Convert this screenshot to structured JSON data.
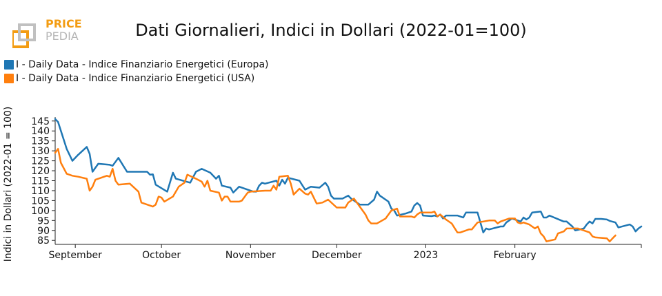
{
  "chart_data": {
    "type": "line",
    "title": "Dati Giornalieri, Indici in Dollari (2022-01=100)",
    "xlabel": "",
    "ylabel": "Indici in Dollari (2022-01 = 100)",
    "x_tick_labels": [
      "September",
      "October",
      "November",
      "December",
      "2023",
      "February"
    ],
    "y_ticks": [
      85,
      90,
      95,
      100,
      105,
      110,
      115,
      120,
      125,
      130,
      135,
      140,
      145
    ],
    "ylim": [
      83,
      147
    ],
    "grid": false,
    "legend_position": "top-left",
    "series": [
      {
        "name": "I - Daily Data - Indice Finanziario Energetici (Europa)",
        "color": "#1f77b4",
        "points": [
          [
            "2022-08-25",
            146
          ],
          [
            "2022-08-26",
            144.5
          ],
          [
            "2022-08-29",
            131
          ],
          [
            "2022-08-31",
            125
          ],
          [
            "2022-09-02",
            128
          ],
          [
            "2022-09-05",
            132
          ],
          [
            "2022-09-06",
            128.5
          ],
          [
            "2022-09-07",
            119.5
          ],
          [
            "2022-09-09",
            123.5
          ],
          [
            "2022-09-13",
            123
          ],
          [
            "2022-09-14",
            122.5
          ],
          [
            "2022-09-16",
            126.5
          ],
          [
            "2022-09-19",
            119.5
          ],
          [
            "2022-09-22",
            119.5
          ],
          [
            "2022-09-26",
            119.5
          ],
          [
            "2022-09-27",
            118
          ],
          [
            "2022-09-28",
            118.2
          ],
          [
            "2022-09-29",
            113
          ],
          [
            "2022-10-03",
            109.5
          ],
          [
            "2022-10-05",
            119
          ],
          [
            "2022-10-06",
            116
          ],
          [
            "2022-10-11",
            114
          ],
          [
            "2022-10-13",
            119.5
          ],
          [
            "2022-10-15",
            121
          ],
          [
            "2022-10-18",
            119
          ],
          [
            "2022-10-20",
            116
          ],
          [
            "2022-10-21",
            117.5
          ],
          [
            "2022-10-22",
            112.5
          ],
          [
            "2022-10-25",
            111.5
          ],
          [
            "2022-10-26",
            109
          ],
          [
            "2022-10-28",
            112
          ],
          [
            "2022-11-02",
            109.5
          ],
          [
            "2022-11-03",
            109.5
          ],
          [
            "2022-11-04",
            112.5
          ],
          [
            "2022-11-05",
            114
          ],
          [
            "2022-11-06",
            113.5
          ],
          [
            "2022-11-10",
            115
          ],
          [
            "2022-11-11",
            112.5
          ],
          [
            "2022-11-12",
            115.5
          ],
          [
            "2022-11-13",
            113.5
          ],
          [
            "2022-11-14",
            116.5
          ],
          [
            "2022-11-18",
            115
          ],
          [
            "2022-11-20",
            110.5
          ],
          [
            "2022-11-22",
            112
          ],
          [
            "2022-11-25",
            111.5
          ],
          [
            "2022-11-27",
            114
          ],
          [
            "2022-11-28",
            112
          ],
          [
            "2022-11-29",
            107.5
          ],
          [
            "2022-11-30",
            106
          ],
          [
            "2022-12-03",
            106
          ],
          [
            "2022-12-05",
            107.5
          ],
          [
            "2022-12-06",
            106
          ],
          [
            "2022-12-07",
            105
          ],
          [
            "2022-12-09",
            103
          ],
          [
            "2022-12-12",
            103
          ],
          [
            "2022-12-14",
            105.5
          ],
          [
            "2022-12-15",
            109.5
          ],
          [
            "2022-12-16",
            107.5
          ],
          [
            "2022-12-19",
            104.5
          ],
          [
            "2022-12-20",
            101
          ],
          [
            "2022-12-21",
            100
          ],
          [
            "2022-12-22",
            97.5
          ],
          [
            "2022-12-25",
            98.5
          ],
          [
            "2022-12-27",
            99.5
          ],
          [
            "2022-12-28",
            102.5
          ],
          [
            "2022-12-29",
            103.8
          ],
          [
            "2022-12-30",
            102.5
          ],
          [
            "2022-12-31",
            97.5
          ],
          [
            "2023-01-03",
            97.2
          ],
          [
            "2023-01-04",
            97.5
          ],
          [
            "2023-01-05",
            97
          ],
          [
            "2023-01-06",
            98
          ],
          [
            "2023-01-07",
            96
          ],
          [
            "2023-01-08",
            97.5
          ],
          [
            "2023-01-12",
            97.5
          ],
          [
            "2023-01-14",
            96.5
          ],
          [
            "2023-01-15",
            99
          ],
          [
            "2023-01-19",
            99
          ],
          [
            "2023-01-21",
            89
          ],
          [
            "2023-01-22",
            91
          ],
          [
            "2023-01-23",
            90.5
          ],
          [
            "2023-01-27",
            92
          ],
          [
            "2023-01-28",
            92
          ],
          [
            "2023-01-29",
            94
          ],
          [
            "2023-01-31",
            96
          ],
          [
            "2023-02-02",
            95
          ],
          [
            "2023-02-03",
            94.5
          ],
          [
            "2023-02-04",
            96.5
          ],
          [
            "2023-02-05",
            95.5
          ],
          [
            "2023-02-06",
            96.5
          ],
          [
            "2023-02-07",
            99
          ],
          [
            "2023-02-10",
            99.5
          ],
          [
            "2023-02-11",
            96.5
          ],
          [
            "2023-02-12",
            96.5
          ],
          [
            "2023-02-13",
            97.5
          ],
          [
            "2023-02-18",
            94.5
          ],
          [
            "2023-02-19",
            94.5
          ],
          [
            "2023-02-21",
            92
          ],
          [
            "2023-02-22",
            90
          ],
          [
            "2023-02-25",
            91
          ],
          [
            "2023-02-26",
            93
          ],
          [
            "2023-02-27",
            94.5
          ],
          [
            "2023-02-28",
            93.5
          ],
          [
            "2023-03-01",
            95.8
          ],
          [
            "2023-03-03",
            95.8
          ],
          [
            "2023-03-05",
            95.5
          ],
          [
            "2023-03-06",
            94.8
          ],
          [
            "2023-03-08",
            94
          ],
          [
            "2023-03-09",
            91.5
          ],
          [
            "2023-03-13",
            93
          ],
          [
            "2023-03-14",
            92
          ],
          [
            "2023-03-15",
            89.5
          ],
          [
            "2023-03-16",
            91
          ],
          [
            "2023-03-17",
            92
          ]
        ]
      },
      {
        "name": "I - Daily Data - Indice Finanziario Energetici (USA)",
        "color": "#ff7f0e",
        "points": [
          [
            "2022-08-25",
            129
          ],
          [
            "2022-08-26",
            131
          ],
          [
            "2022-08-27",
            124
          ],
          [
            "2022-08-29",
            118.5
          ],
          [
            "2022-08-31",
            117.5
          ],
          [
            "2022-09-02",
            117
          ],
          [
            "2022-09-05",
            116
          ],
          [
            "2022-09-06",
            110
          ],
          [
            "2022-09-07",
            112
          ],
          [
            "2022-09-08",
            115.5
          ],
          [
            "2022-09-10",
            116.5
          ],
          [
            "2022-09-12",
            117.5
          ],
          [
            "2022-09-13",
            117
          ],
          [
            "2022-09-14",
            121
          ],
          [
            "2022-09-15",
            115
          ],
          [
            "2022-09-16",
            113
          ],
          [
            "2022-09-20",
            113.5
          ],
          [
            "2022-09-23",
            109.5
          ],
          [
            "2022-09-24",
            104
          ],
          [
            "2022-09-28",
            102
          ],
          [
            "2022-09-29",
            103
          ],
          [
            "2022-09-30",
            107
          ],
          [
            "2022-10-01",
            106.5
          ],
          [
            "2022-10-02",
            104.5
          ],
          [
            "2022-10-05",
            107
          ],
          [
            "2022-10-06",
            109.5
          ],
          [
            "2022-10-07",
            112
          ],
          [
            "2022-10-09",
            114
          ],
          [
            "2022-10-10",
            118
          ],
          [
            "2022-10-13",
            116
          ],
          [
            "2022-10-15",
            114.5
          ],
          [
            "2022-10-16",
            112
          ],
          [
            "2022-10-17",
            115
          ],
          [
            "2022-10-18",
            110
          ],
          [
            "2022-10-21",
            109
          ],
          [
            "2022-10-22",
            105
          ],
          [
            "2022-10-23",
            107
          ],
          [
            "2022-10-24",
            107
          ],
          [
            "2022-10-25",
            104.5
          ],
          [
            "2022-10-28",
            104.5
          ],
          [
            "2022-10-29",
            105
          ],
          [
            "2022-10-31",
            109
          ],
          [
            "2022-11-01",
            109.5
          ],
          [
            "2022-11-06",
            110
          ],
          [
            "2022-11-08",
            110
          ],
          [
            "2022-11-09",
            112.5
          ],
          [
            "2022-11-10",
            110.5
          ],
          [
            "2022-11-11",
            117
          ],
          [
            "2022-11-14",
            117.5
          ],
          [
            "2022-11-15",
            113.5
          ],
          [
            "2022-11-16",
            108
          ],
          [
            "2022-11-18",
            111
          ],
          [
            "2022-11-20",
            108.5
          ],
          [
            "2022-11-21",
            108
          ],
          [
            "2022-11-22",
            109.5
          ],
          [
            "2022-11-24",
            103.5
          ],
          [
            "2022-11-26",
            104
          ],
          [
            "2022-11-28",
            105.5
          ],
          [
            "2022-12-01",
            101.5
          ],
          [
            "2022-12-04",
            101.5
          ],
          [
            "2022-12-05",
            104
          ],
          [
            "2022-12-07",
            106
          ],
          [
            "2022-12-09",
            102
          ],
          [
            "2022-12-11",
            98
          ],
          [
            "2022-12-12",
            95
          ],
          [
            "2022-12-13",
            93.5
          ],
          [
            "2022-12-15",
            93.5
          ],
          [
            "2022-12-18",
            96
          ],
          [
            "2022-12-20",
            100
          ],
          [
            "2022-12-22",
            101
          ],
          [
            "2022-12-23",
            97
          ],
          [
            "2022-12-27",
            97
          ],
          [
            "2022-12-28",
            96.5
          ],
          [
            "2022-12-29",
            98
          ],
          [
            "2022-12-30",
            99
          ],
          [
            "2023-01-03",
            99
          ],
          [
            "2023-01-04",
            99.5
          ],
          [
            "2023-01-05",
            97
          ],
          [
            "2023-01-06",
            98
          ],
          [
            "2023-01-08",
            95.5
          ],
          [
            "2023-01-10",
            93.5
          ],
          [
            "2023-01-12",
            89
          ],
          [
            "2023-01-13",
            89
          ],
          [
            "2023-01-16",
            90.5
          ],
          [
            "2023-01-17",
            90.5
          ],
          [
            "2023-01-19",
            94
          ],
          [
            "2023-01-21",
            94.5
          ],
          [
            "2023-01-23",
            95
          ],
          [
            "2023-01-25",
            95
          ],
          [
            "2023-01-26",
            93.5
          ],
          [
            "2023-01-27",
            94.5
          ],
          [
            "2023-01-30",
            96
          ],
          [
            "2023-02-01",
            96
          ],
          [
            "2023-02-02",
            94
          ],
          [
            "2023-02-03",
            93.5
          ],
          [
            "2023-02-04",
            94
          ],
          [
            "2023-02-06",
            93
          ],
          [
            "2023-02-08",
            91
          ],
          [
            "2023-02-09",
            92
          ],
          [
            "2023-02-10",
            88.5
          ],
          [
            "2023-02-11",
            87
          ],
          [
            "2023-02-12",
            84.5
          ],
          [
            "2023-02-15",
            85.5
          ],
          [
            "2023-02-16",
            88.5
          ],
          [
            "2023-02-17",
            89
          ],
          [
            "2023-02-18",
            89.5
          ],
          [
            "2023-02-19",
            91
          ],
          [
            "2023-02-23",
            91
          ],
          [
            "2023-02-25",
            90
          ],
          [
            "2023-02-27",
            89
          ],
          [
            "2023-02-28",
            87
          ],
          [
            "2023-03-01",
            86.5
          ],
          [
            "2023-03-05",
            86
          ],
          [
            "2023-03-06",
            84.5
          ],
          [
            "2023-03-07",
            86
          ],
          [
            "2023-03-08",
            87.5
          ]
        ]
      }
    ]
  }
}
